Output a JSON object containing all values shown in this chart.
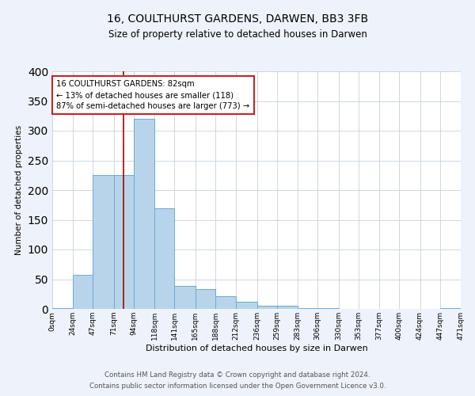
{
  "title": "16, COULTHURST GARDENS, DARWEN, BB3 3FB",
  "subtitle": "Size of property relative to detached houses in Darwen",
  "xlabel": "Distribution of detached houses by size in Darwen",
  "ylabel": "Number of detached properties",
  "bar_values": [
    2,
    57,
    225,
    225,
    320,
    170,
    39,
    34,
    21,
    12,
    5,
    5,
    1,
    1,
    0,
    0,
    0,
    0,
    0,
    2
  ],
  "bin_edges": [
    0,
    24,
    47,
    71,
    94,
    118,
    141,
    165,
    188,
    212,
    236,
    259,
    283,
    306,
    330,
    353,
    377,
    400,
    424,
    447,
    471
  ],
  "tick_labels": [
    "0sqm",
    "24sqm",
    "47sqm",
    "71sqm",
    "94sqm",
    "118sqm",
    "141sqm",
    "165sqm",
    "188sqm",
    "212sqm",
    "236sqm",
    "259sqm",
    "283sqm",
    "306sqm",
    "330sqm",
    "353sqm",
    "377sqm",
    "400sqm",
    "424sqm",
    "447sqm",
    "471sqm"
  ],
  "bar_color": "#b8d4ea",
  "bar_edge_color": "#6aaad4",
  "ylim": [
    0,
    400
  ],
  "yticks": [
    0,
    50,
    100,
    150,
    200,
    250,
    300,
    350,
    400
  ],
  "vline_x": 82,
  "vline_color": "#aa0000",
  "annotation_title": "16 COULTHURST GARDENS: 82sqm",
  "annotation_line1": "← 13% of detached houses are smaller (118)",
  "annotation_line2": "87% of semi-detached houses are larger (773) →",
  "annotation_box_color": "#cc2222",
  "footer_line1": "Contains HM Land Registry data © Crown copyright and database right 2024.",
  "footer_line2": "Contains public sector information licensed under the Open Government Licence v3.0.",
  "bg_color": "#eef2fa",
  "plot_bg_color": "#ffffff",
  "grid_color": "#c8d0de"
}
